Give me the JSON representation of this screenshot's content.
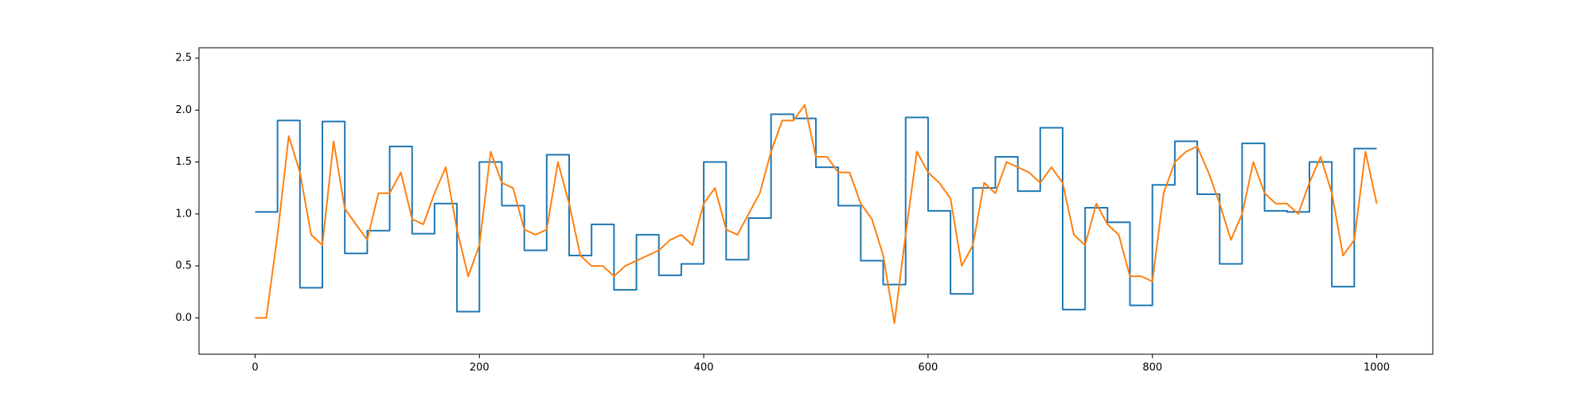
{
  "chart_data": {
    "type": "line",
    "series": [
      {
        "color": "#1f77b4",
        "drawstyle": "steps-post",
        "x": [
          0,
          20,
          40,
          60,
          80,
          100,
          120,
          140,
          160,
          180,
          200,
          220,
          240,
          260,
          280,
          300,
          320,
          340,
          360,
          380,
          400,
          420,
          440,
          460,
          480,
          500,
          520,
          540,
          560,
          580,
          600,
          620,
          640,
          660,
          680,
          700,
          720,
          740,
          760,
          780,
          800,
          820,
          840,
          860,
          880,
          900,
          920,
          940,
          960,
          980,
          1000
        ],
        "values": [
          1.02,
          1.9,
          0.29,
          1.89,
          0.62,
          0.84,
          1.65,
          0.81,
          1.1,
          0.06,
          1.5,
          1.08,
          0.65,
          1.57,
          0.6,
          0.9,
          0.27,
          0.8,
          0.41,
          0.52,
          1.5,
          0.56,
          0.96,
          1.96,
          1.92,
          1.45,
          1.08,
          0.55,
          0.32,
          1.93,
          1.03,
          0.23,
          1.25,
          1.55,
          1.22,
          1.83,
          0.08,
          1.06,
          0.92,
          0.12,
          1.28,
          1.7,
          1.19,
          0.52,
          1.68,
          1.03,
          1.02,
          1.5,
          0.3,
          1.63,
          1.63
        ]
      },
      {
        "color": "#ff7f0e",
        "x": [
          0,
          10,
          20,
          30,
          40,
          50,
          60,
          70,
          80,
          90,
          100,
          110,
          120,
          130,
          140,
          150,
          160,
          170,
          180,
          190,
          200,
          210,
          220,
          230,
          240,
          250,
          260,
          270,
          280,
          290,
          300,
          310,
          320,
          330,
          340,
          350,
          360,
          370,
          380,
          390,
          400,
          410,
          420,
          430,
          440,
          450,
          460,
          470,
          480,
          490,
          500,
          510,
          520,
          530,
          540,
          550,
          560,
          570,
          580,
          590,
          600,
          610,
          620,
          630,
          640,
          650,
          660,
          670,
          680,
          690,
          700,
          710,
          720,
          730,
          740,
          750,
          760,
          770,
          780,
          790,
          800,
          810,
          820,
          830,
          840,
          850,
          860,
          870,
          880,
          890,
          900,
          910,
          920,
          930,
          940,
          950,
          960,
          970,
          980,
          990,
          1000
        ],
        "values": [
          0.0,
          0.0,
          0.8,
          1.75,
          1.4,
          0.8,
          0.7,
          1.7,
          1.05,
          0.9,
          0.75,
          1.2,
          1.2,
          1.4,
          0.95,
          0.9,
          1.2,
          1.45,
          0.85,
          0.4,
          0.7,
          1.6,
          1.3,
          1.25,
          0.85,
          0.8,
          0.85,
          1.5,
          1.1,
          0.6,
          0.5,
          0.5,
          0.4,
          0.5,
          0.55,
          0.6,
          0.65,
          0.75,
          0.8,
          0.7,
          1.1,
          1.25,
          0.85,
          0.8,
          1.0,
          1.2,
          1.6,
          1.9,
          1.9,
          2.05,
          1.55,
          1.55,
          1.4,
          1.4,
          1.1,
          0.95,
          0.6,
          -0.05,
          0.8,
          1.6,
          1.4,
          1.3,
          1.15,
          0.5,
          0.7,
          1.3,
          1.2,
          1.5,
          1.45,
          1.4,
          1.3,
          1.45,
          1.3,
          0.8,
          0.7,
          1.1,
          0.9,
          0.8,
          0.4,
          0.4,
          0.35,
          1.2,
          1.5,
          1.6,
          1.65,
          1.4,
          1.1,
          0.75,
          1.0,
          1.5,
          1.2,
          1.1,
          1.1,
          1.0,
          1.3,
          1.55,
          1.2,
          0.6,
          0.75,
          1.6,
          1.1
        ]
      }
    ],
    "xlim": [
      -50,
      1050
    ],
    "xticks": [
      0,
      200,
      400,
      600,
      800,
      1000
    ],
    "ylim": [
      -0.35,
      2.6
    ],
    "yticks": [
      {
        "value": 0,
        "label": "0.0"
      },
      0.5,
      {
        "value": 1,
        "label": "1.0"
      },
      1.5,
      {
        "value": 2,
        "label": "2.0"
      },
      2.5
    ]
  }
}
